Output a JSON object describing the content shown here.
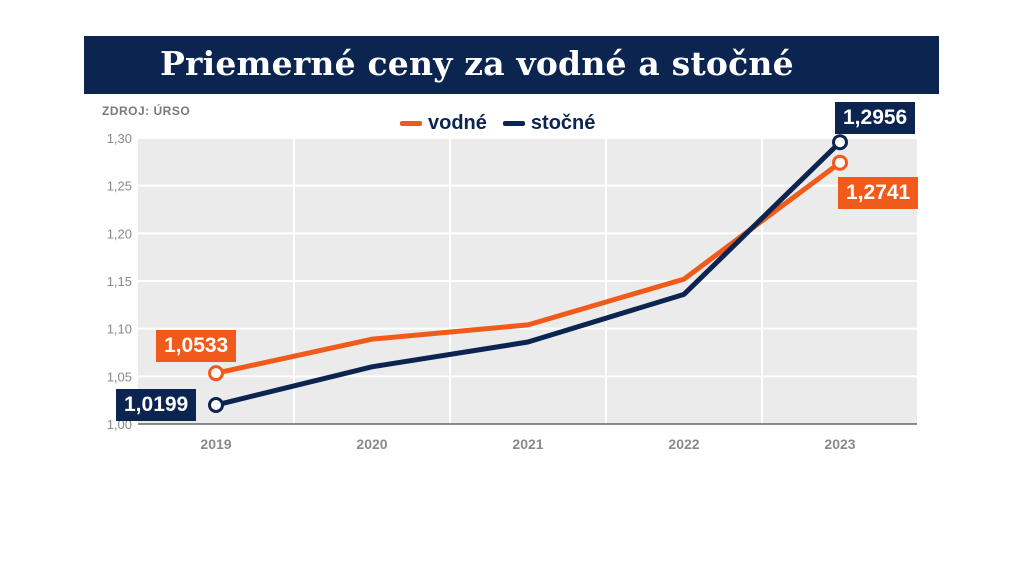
{
  "title": "Priemerné ceny za vodné a stočné",
  "source": "ZDROJ: ÚRSO",
  "colors": {
    "vodne": "#f05a1a",
    "stocne": "#0b2550",
    "header": "#0b2550"
  },
  "chart_data": {
    "type": "line",
    "title": "Priemerné ceny za vodné a stočné",
    "xlabel": "",
    "ylabel": "",
    "categories": [
      "2019",
      "2020",
      "2021",
      "2022",
      "2023"
    ],
    "y_ticks": [
      "1,00",
      "1,05",
      "1,10",
      "1,15",
      "1,20",
      "1,25",
      "1,30"
    ],
    "ylim": [
      1.0,
      1.3
    ],
    "grid": true,
    "legend_position": "top-center",
    "series": [
      {
        "name": "vodné",
        "color": "#f05a1a",
        "values": [
          1.0533,
          1.089,
          1.104,
          1.152,
          1.2741
        ]
      },
      {
        "name": "stočné",
        "color": "#0b2550",
        "values": [
          1.0199,
          1.06,
          1.086,
          1.136,
          1.2956
        ]
      }
    ],
    "annotations": [
      {
        "series": "vodné",
        "index": 0,
        "text": "1,0533"
      },
      {
        "series": "stočné",
        "index": 0,
        "text": "1,0199"
      },
      {
        "series": "stočné",
        "index": 4,
        "text": "1,2956"
      },
      {
        "series": "vodné",
        "index": 4,
        "text": "1,2741"
      }
    ]
  }
}
